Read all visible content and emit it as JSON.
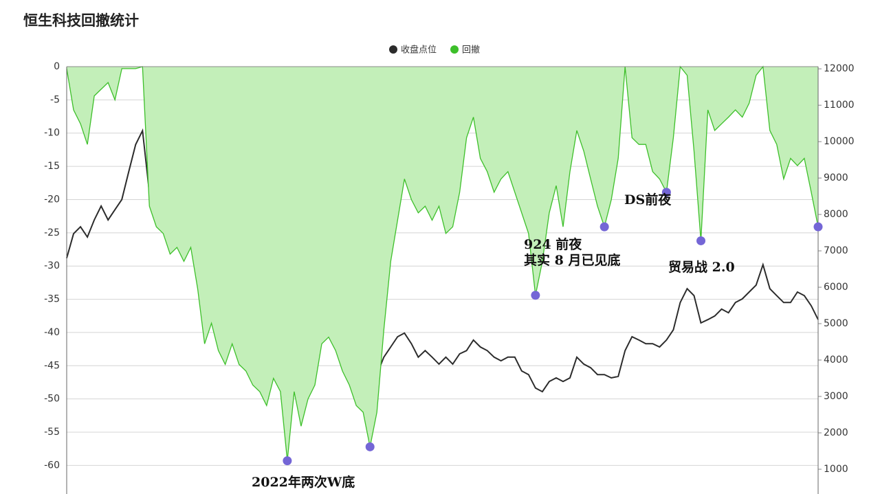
{
  "chart_data": {
    "type": "line",
    "title": "恒生科技回撤统计",
    "ylim": [
      -64.3,
      0
    ],
    "yticks": [
      0,
      -5,
      -10,
      -15,
      -20,
      -25,
      -30,
      -35,
      -40,
      -45,
      -50,
      -55,
      -60
    ],
    "y2lim": [
      320,
      12060
    ],
    "y2ticks": [
      1000,
      2000,
      3000,
      4000,
      5000,
      6000,
      7000,
      8000,
      9000,
      10000,
      11000,
      12000
    ],
    "grid": true,
    "legend": "top",
    "series": [
      {
        "name": "收盘点位",
        "color": "#2b2b2b",
        "axis": "y2",
        "values": [
          6800,
          7470,
          7660,
          7380,
          7850,
          8230,
          7850,
          8130,
          8410,
          9170,
          9920,
          10300,
          8600,
          8410,
          8230,
          8130,
          8320,
          8230,
          7850,
          7090,
          6720,
          6620,
          6810,
          6150,
          6340,
          6060,
          5960,
          5770,
          5490,
          5580,
          5680,
          4830,
          4450,
          4640,
          4550,
          4450,
          4640,
          5020,
          4830,
          4640,
          4450,
          4260,
          3890,
          3600,
          3040,
          3600,
          4080,
          4360,
          4640,
          4740,
          4450,
          4080,
          4260,
          4080,
          3890,
          4080,
          3890,
          4170,
          4260,
          4550,
          4360,
          4260,
          4080,
          3980,
          4080,
          4080,
          3700,
          3600,
          3230,
          3130,
          3410,
          3510,
          3410,
          3510,
          4080,
          3890,
          3790,
          3600,
          3600,
          3510,
          3550,
          4260,
          4640,
          4550,
          4450,
          4450,
          4360,
          4550,
          4830,
          5580,
          5960,
          5770,
          5020,
          5110,
          5210,
          5400,
          5300,
          5580,
          5680,
          5870,
          6060,
          6620,
          5960,
          5770,
          5580,
          5580,
          5870,
          5770,
          5490,
          5110
        ]
      },
      {
        "name": "回撤",
        "color": "#3dbf2a",
        "fill": "#c3efb9",
        "values": [
          -0.3,
          -6.5,
          -8.6,
          -11.7,
          -4.4,
          -3.4,
          -2.4,
          -5.0,
          -0.3,
          -0.3,
          -0.3,
          0,
          -21.0,
          -24.1,
          -25.1,
          -28.2,
          -27.2,
          -29.3,
          -27.2,
          -33.4,
          -41.7,
          -38.6,
          -42.7,
          -44.8,
          -41.7,
          -44.8,
          -45.8,
          -47.9,
          -48.9,
          -51.0,
          -46.9,
          -48.9,
          -59.3,
          -48.9,
          -54.1,
          -50.0,
          -47.9,
          -41.7,
          -40.7,
          -42.7,
          -45.8,
          -47.9,
          -51.0,
          -52.0,
          -57.2,
          -52.0,
          -39.6,
          -29.3,
          -23.1,
          -16.9,
          -20.0,
          -22.0,
          -21.0,
          -23.1,
          -21.0,
          -25.1,
          -24.1,
          -18.9,
          -10.7,
          -7.6,
          -13.8,
          -15.8,
          -18.9,
          -16.9,
          -15.8,
          -18.9,
          -22.0,
          -25.1,
          -34.4,
          -29.3,
          -22.0,
          -17.9,
          -24.1,
          -15.8,
          -9.6,
          -12.7,
          -16.9,
          -21.0,
          -24.1,
          -20.0,
          -13.8,
          0,
          -10.7,
          -11.7,
          -11.7,
          -15.8,
          -16.9,
          -18.9,
          -10.7,
          0,
          -1.3,
          -12.7,
          -26.2,
          -6.5,
          -9.6,
          -8.6,
          -7.6,
          -6.5,
          -7.6,
          -5.5,
          -1.3,
          0,
          -9.6,
          -11.7,
          -16.9,
          -13.8,
          -14.9,
          -13.8,
          -18.9,
          -24.1
        ]
      }
    ],
    "markers": {
      "color": "#7466d6",
      "points": [
        {
          "x": 32,
          "value": -59.3
        },
        {
          "x": 44,
          "value": -57.2
        },
        {
          "x": 68,
          "value": -34.4
        },
        {
          "x": 78,
          "value": -24.1
        },
        {
          "x": 87,
          "value": -18.9
        },
        {
          "x": 92,
          "value": -26.2
        },
        {
          "x": 109,
          "value": -24.1
        }
      ]
    },
    "annotations": [
      "2022年两次W底",
      "924 前夜",
      "其实 8 月已见底",
      "DS前夜",
      "贸易战 2.0"
    ]
  }
}
